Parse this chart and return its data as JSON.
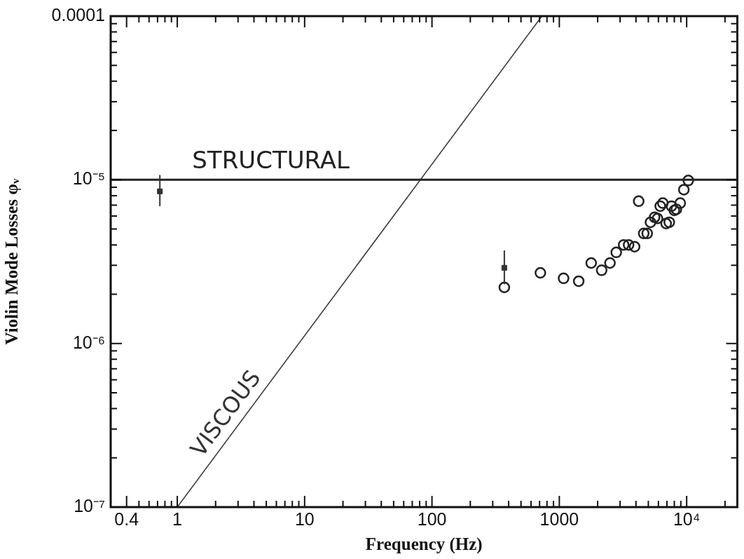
{
  "chart_data": {
    "type": "scatter",
    "xlabel": "Frequency (Hz)",
    "ylabel": "Violin Mode Losses φᵥ",
    "log": "xy",
    "grid": false,
    "legend": false,
    "xlim": [
      0.3,
      25000
    ],
    "ylim": [
      1e-07,
      0.0001
    ],
    "xticks": [
      {
        "value": 0.4,
        "label": "0.4"
      },
      {
        "value": 0.5,
        "label": null
      },
      {
        "value": 0.6,
        "label": null
      },
      {
        "value": 0.7,
        "label": null
      },
      {
        "value": 0.8,
        "label": null
      },
      {
        "value": 0.9,
        "label": null
      },
      {
        "value": 1,
        "label": "1"
      },
      {
        "value": 2,
        "label": null
      },
      {
        "value": 3,
        "label": null
      },
      {
        "value": 4,
        "label": null
      },
      {
        "value": 5,
        "label": null
      },
      {
        "value": 6,
        "label": null
      },
      {
        "value": 7,
        "label": null
      },
      {
        "value": 8,
        "label": null
      },
      {
        "value": 9,
        "label": null
      },
      {
        "value": 10,
        "label": "10"
      },
      {
        "value": 20,
        "label": null
      },
      {
        "value": 30,
        "label": null
      },
      {
        "value": 40,
        "label": null
      },
      {
        "value": 50,
        "label": null
      },
      {
        "value": 60,
        "label": null
      },
      {
        "value": 70,
        "label": null
      },
      {
        "value": 80,
        "label": null
      },
      {
        "value": 90,
        "label": null
      },
      {
        "value": 100,
        "label": "100"
      },
      {
        "value": 200,
        "label": null
      },
      {
        "value": 300,
        "label": null
      },
      {
        "value": 400,
        "label": null
      },
      {
        "value": 500,
        "label": null
      },
      {
        "value": 600,
        "label": null
      },
      {
        "value": 700,
        "label": null
      },
      {
        "value": 800,
        "label": null
      },
      {
        "value": 900,
        "label": null
      },
      {
        "value": 1000,
        "label": "1000"
      },
      {
        "value": 2000,
        "label": null
      },
      {
        "value": 3000,
        "label": null
      },
      {
        "value": 4000,
        "label": null
      },
      {
        "value": 5000,
        "label": null
      },
      {
        "value": 6000,
        "label": null
      },
      {
        "value": 7000,
        "label": null
      },
      {
        "value": 8000,
        "label": null
      },
      {
        "value": 9000,
        "label": null
      },
      {
        "value": 10000,
        "label": "10⁴"
      },
      {
        "value": 20000,
        "label": null
      }
    ],
    "yticks": [
      {
        "value": 1e-07,
        "label": "10⁻⁷"
      },
      {
        "value": 2e-07,
        "label": null
      },
      {
        "value": 3e-07,
        "label": null
      },
      {
        "value": 4e-07,
        "label": null
      },
      {
        "value": 5e-07,
        "label": null
      },
      {
        "value": 6e-07,
        "label": null
      },
      {
        "value": 7e-07,
        "label": null
      },
      {
        "value": 8e-07,
        "label": null
      },
      {
        "value": 9e-07,
        "label": null
      },
      {
        "value": 1e-06,
        "label": "10⁻⁶"
      },
      {
        "value": 2e-06,
        "label": null
      },
      {
        "value": 3e-06,
        "label": null
      },
      {
        "value": 4e-06,
        "label": null
      },
      {
        "value": 5e-06,
        "label": null
      },
      {
        "value": 6e-06,
        "label": null
      },
      {
        "value": 7e-06,
        "label": null
      },
      {
        "value": 8e-06,
        "label": null
      },
      {
        "value": 9e-06,
        "label": null
      },
      {
        "value": 1e-05,
        "label": "10⁻⁵"
      },
      {
        "value": 2e-05,
        "label": null
      },
      {
        "value": 3e-05,
        "label": null
      },
      {
        "value": 4e-05,
        "label": null
      },
      {
        "value": 5e-05,
        "label": null
      },
      {
        "value": 6e-05,
        "label": null
      },
      {
        "value": 7e-05,
        "label": null
      },
      {
        "value": 8e-05,
        "label": null
      },
      {
        "value": 9e-05,
        "label": null
      },
      {
        "value": 0.0001,
        "label": "0.0001"
      }
    ],
    "ref_lines": [
      {
        "axis": "y",
        "value": 1e-05,
        "label": "STRUCTURAL",
        "color": "#222222"
      }
    ],
    "series": [
      {
        "name": "VISCOUS",
        "type": "line",
        "color": "#333333",
        "marker": "none",
        "x": [
          1,
          730
        ],
        "values": [
          1e-07,
          0.0001
        ]
      },
      {
        "color": "#333333",
        "marker": "square",
        "x": [
          0.73,
          370
        ],
        "values": [
          8.5e-06,
          2.9e-06
        ],
        "errors": [
          [
            6.9e-06,
            1.07e-05
          ],
          [
            2.3e-06,
            3.7e-06
          ]
        ]
      },
      {
        "color": "#222222",
        "marker": "circle",
        "x": [
          370,
          710,
          1080,
          1420,
          1780,
          2150,
          2500,
          2800,
          3200,
          3500,
          3900,
          4200,
          4600,
          4900,
          5200,
          5600,
          5900,
          6200,
          6500,
          6900,
          7300,
          7600,
          8000,
          8300,
          8900,
          9500,
          10300
        ],
        "values": [
          2.2e-06,
          2.7e-06,
          2.5e-06,
          2.4e-06,
          3.1e-06,
          2.8e-06,
          3.1e-06,
          3.6e-06,
          4e-06,
          4e-06,
          3.9e-06,
          7.4e-06,
          4.7e-06,
          4.7e-06,
          5.5e-06,
          5.9e-06,
          5.8e-06,
          6.9e-06,
          7.2e-06,
          5.4e-06,
          5.5e-06,
          6.9e-06,
          6.5e-06,
          6.6e-06,
          7.2e-06,
          8.7e-06,
          9.9e-06
        ]
      }
    ]
  }
}
